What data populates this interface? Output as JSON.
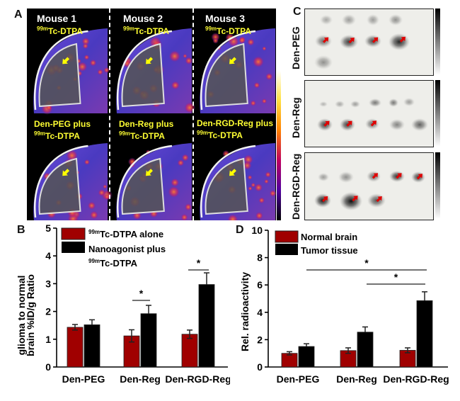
{
  "panel_a": {
    "label": "A",
    "columns": [
      {
        "title": "Mouse 1",
        "tracer": "Tc-DTPA",
        "tracer_sup": "99m",
        "bottom_line1": "Den-PEG plus",
        "bottom_tracer": "Tc-DTPA",
        "bottom_sup": "99m"
      },
      {
        "title": "Mouse 2",
        "tracer": "Tc-DTPA",
        "tracer_sup": "99m",
        "bottom_line1": "Den-Reg plus",
        "bottom_tracer": "Tc-DTPA",
        "bottom_sup": "99m"
      },
      {
        "title": "Mouse 3",
        "tracer": "Tc-DTPA",
        "tracer_sup": "99m",
        "bottom_line1": "Den-RGD-Reg plus",
        "bottom_tracer": "Tc-DTPA",
        "bottom_sup": "99m"
      }
    ],
    "arrow_color": "#ffff00",
    "colorbar": "hot-metal"
  },
  "panel_c": {
    "label": "C",
    "rows": [
      {
        "label": "Den-PEG"
      },
      {
        "label": "Den-Reg"
      },
      {
        "label": "Den-RGD-Reg"
      }
    ],
    "arrow_color": "#e00000"
  },
  "chart_data": [
    {
      "panel": "B",
      "type": "bar",
      "ylabel_line1": "glioma to normal",
      "ylabel_line2": "brain %ID/g Ratio",
      "ylim": [
        0,
        5
      ],
      "yticks": [
        "0",
        "1",
        "2",
        "3",
        "4",
        "5"
      ],
      "categories": [
        "Den-PEG",
        "Den-Reg",
        "Den-RGD-Reg"
      ],
      "series": [
        {
          "name": "Tc-DTPA alone",
          "name_sup": "99m",
          "color": "#a00000",
          "values": [
            1.43,
            1.12,
            1.18
          ],
          "errors": [
            0.1,
            0.22,
            0.15
          ]
        },
        {
          "name": "Nanoagonist plus",
          "name_line2": "Tc-DTPA",
          "name_sup": "99m",
          "color": "#000000",
          "values": [
            1.52,
            1.92,
            2.97
          ],
          "errors": [
            0.18,
            0.3,
            0.42
          ]
        }
      ],
      "significance": [
        {
          "between": [
            "Den-Reg"
          ],
          "mark": "*"
        },
        {
          "between": [
            "Den-RGD-Reg"
          ],
          "mark": "*"
        }
      ],
      "legend": "top-left"
    },
    {
      "panel": "D",
      "type": "bar",
      "ylabel": "Rel. radioactivity",
      "ylim": [
        0,
        10
      ],
      "yticks": [
        "0",
        "2",
        "4",
        "6",
        "8",
        "10"
      ],
      "categories": [
        "Den-PEG",
        "Den-Reg",
        "Den-RGD-Reg"
      ],
      "series": [
        {
          "name": "Normal brain",
          "color": "#a00000",
          "values": [
            1.0,
            1.2,
            1.22
          ],
          "errors": [
            0.12,
            0.2,
            0.18
          ]
        },
        {
          "name": "Tumor tissue",
          "color": "#000000",
          "values": [
            1.5,
            2.55,
            4.85
          ],
          "errors": [
            0.2,
            0.38,
            0.65
          ]
        }
      ],
      "significance": [
        {
          "between": [
            "Den-PEG",
            "Den-RGD-Reg"
          ],
          "mark": "*"
        },
        {
          "between": [
            "Den-Reg",
            "Den-RGD-Reg"
          ],
          "mark": "*"
        }
      ],
      "legend": "top-left"
    }
  ]
}
